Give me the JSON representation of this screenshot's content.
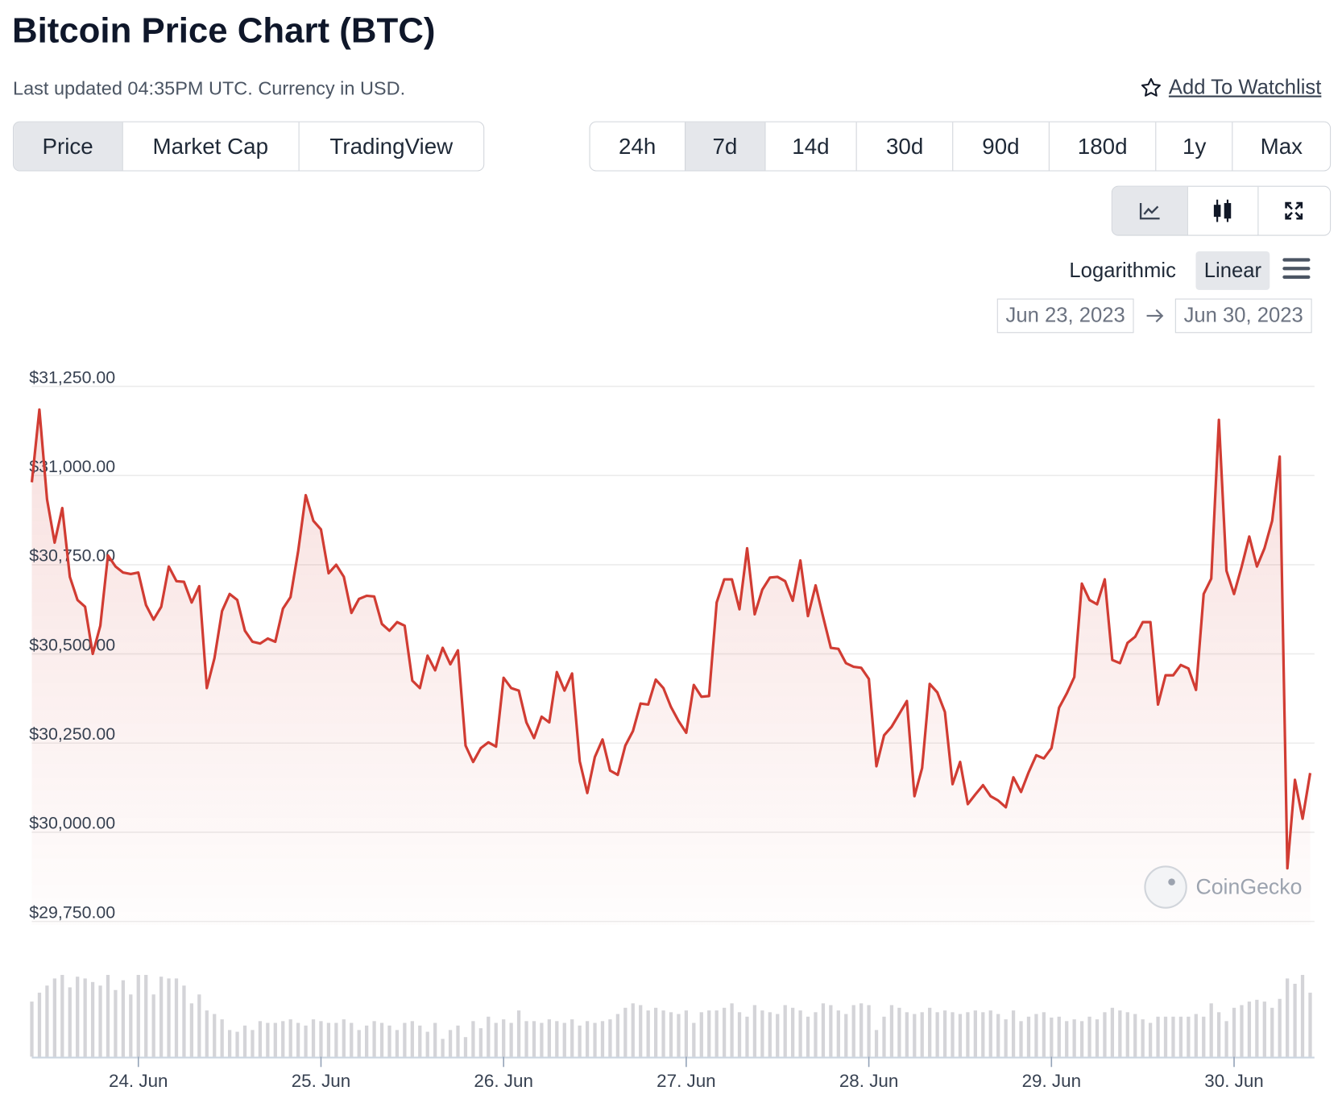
{
  "header": {
    "title": "Bitcoin Price Chart (BTC)",
    "subtitle": "Last updated 04:35PM UTC. Currency in USD.",
    "watchlist": "Add To Watchlist"
  },
  "tabs": {
    "items": [
      "Price",
      "Market Cap",
      "TradingView"
    ],
    "active": 0
  },
  "ranges": {
    "items": [
      "24h",
      "7d",
      "14d",
      "30d",
      "90d",
      "180d",
      "1y",
      "Max"
    ],
    "active": 1
  },
  "scale_toggle": {
    "items": [
      "Logarithmic",
      "Linear"
    ],
    "active": 1
  },
  "date_range": {
    "from": "Jun 23, 2023",
    "to": "Jun 30, 2023"
  },
  "watermark": "CoinGecko",
  "chart_data": [
    {
      "type": "line",
      "color": "#d13c33",
      "grid": true,
      "ylim": [
        29740,
        31320
      ],
      "yticks": [
        {
          "value": 29750,
          "label": "$29,750.00"
        },
        {
          "value": 30000,
          "label": "$30,000.00"
        },
        {
          "value": 30250,
          "label": "$30,250.00"
        },
        {
          "value": 30500,
          "label": "$30,500.00"
        },
        {
          "value": 30750,
          "label": "$30,750.00"
        },
        {
          "value": 31000,
          "label": "$31,000.00"
        },
        {
          "value": 31250,
          "label": "$31,250.00"
        }
      ],
      "xticks": [
        {
          "value": 14,
          "label": "24. Jun"
        },
        {
          "value": 38,
          "label": "25. Jun"
        },
        {
          "value": 62,
          "label": "26. Jun"
        },
        {
          "value": 86,
          "label": "27. Jun"
        },
        {
          "value": 110,
          "label": "28. Jun"
        },
        {
          "value": 134,
          "label": "29. Jun"
        },
        {
          "value": 158,
          "label": "30. Jun"
        }
      ],
      "values": [
        30981,
        31185,
        30933,
        30812,
        30909,
        30716,
        30651,
        30632,
        30500,
        30579,
        30776,
        30745,
        30728,
        30724,
        30728,
        30637,
        30596,
        30632,
        30745,
        30704,
        30702,
        30644,
        30690,
        30404,
        30488,
        30620,
        30668,
        30651,
        30565,
        30534,
        30529,
        30543,
        30534,
        30627,
        30659,
        30788,
        30945,
        30873,
        30849,
        30726,
        30750,
        30716,
        30615,
        30654,
        30663,
        30661,
        30584,
        30565,
        30589,
        30579,
        30425,
        30404,
        30495,
        30454,
        30517,
        30471,
        30510,
        30243,
        30197,
        30236,
        30252,
        30240,
        30433,
        30404,
        30397,
        30308,
        30264,
        30324,
        30308,
        30449,
        30397,
        30445,
        30199,
        30110,
        30211,
        30260,
        30173,
        30161,
        30243,
        30284,
        30361,
        30358,
        30428,
        30404,
        30351,
        30312,
        30279,
        30413,
        30380,
        30382,
        30644,
        30709,
        30709,
        30625,
        30796,
        30611,
        30680,
        30714,
        30716,
        30704,
        30649,
        30762,
        30606,
        30692,
        30603,
        30517,
        30514,
        30474,
        30464,
        30461,
        30430,
        30185,
        30272,
        30296,
        30332,
        30368,
        30101,
        30180,
        30416,
        30392,
        30337,
        30135,
        30197,
        30079,
        30106,
        30132,
        30101,
        30089,
        30070,
        30154,
        30113,
        30168,
        30216,
        30207,
        30236,
        30349,
        30389,
        30435,
        30697,
        30651,
        30639,
        30709,
        30483,
        30474,
        30531,
        30548,
        30589,
        30589,
        30358,
        30440,
        30440,
        30469,
        30459,
        30399,
        30668,
        30711,
        31156,
        30733,
        30668,
        30745,
        30829,
        30745,
        30796,
        30873,
        31053,
        29899,
        30147,
        30038,
        30166
      ]
    },
    {
      "type": "bar",
      "color": "#d4d4d8",
      "values": [
        62,
        72,
        80,
        88,
        92,
        78,
        90,
        88,
        84,
        80,
        92,
        75,
        86,
        70,
        92,
        92,
        70,
        90,
        88,
        88,
        80,
        60,
        70,
        52,
        48,
        42,
        30,
        28,
        35,
        30,
        40,
        38,
        38,
        40,
        42,
        38,
        35,
        42,
        40,
        38,
        38,
        42,
        38,
        30,
        35,
        40,
        38,
        35,
        30,
        38,
        40,
        35,
        28,
        38,
        20,
        30,
        35,
        22,
        40,
        32,
        45,
        38,
        42,
        38,
        52,
        40,
        40,
        38,
        42,
        40,
        38,
        42,
        35,
        40,
        38,
        40,
        42,
        48,
        55,
        60,
        58,
        52,
        55,
        52,
        50,
        48,
        52,
        38,
        50,
        52,
        52,
        55,
        60,
        50,
        45,
        58,
        52,
        50,
        48,
        58,
        55,
        52,
        45,
        50,
        60,
        58,
        52,
        48,
        58,
        60,
        58,
        30,
        45,
        58,
        55,
        50,
        48,
        50,
        55,
        50,
        52,
        50,
        48,
        50,
        52,
        50,
        52,
        48,
        42,
        52,
        40,
        45,
        48,
        50,
        44,
        45,
        40,
        42,
        40,
        45,
        42,
        50,
        55,
        52,
        50,
        48,
        42,
        38,
        45,
        45,
        45,
        45,
        45,
        48,
        45,
        60,
        50,
        40,
        55,
        58,
        62,
        64,
        62,
        55,
        65,
        88,
        82,
        92,
        72
      ]
    }
  ]
}
